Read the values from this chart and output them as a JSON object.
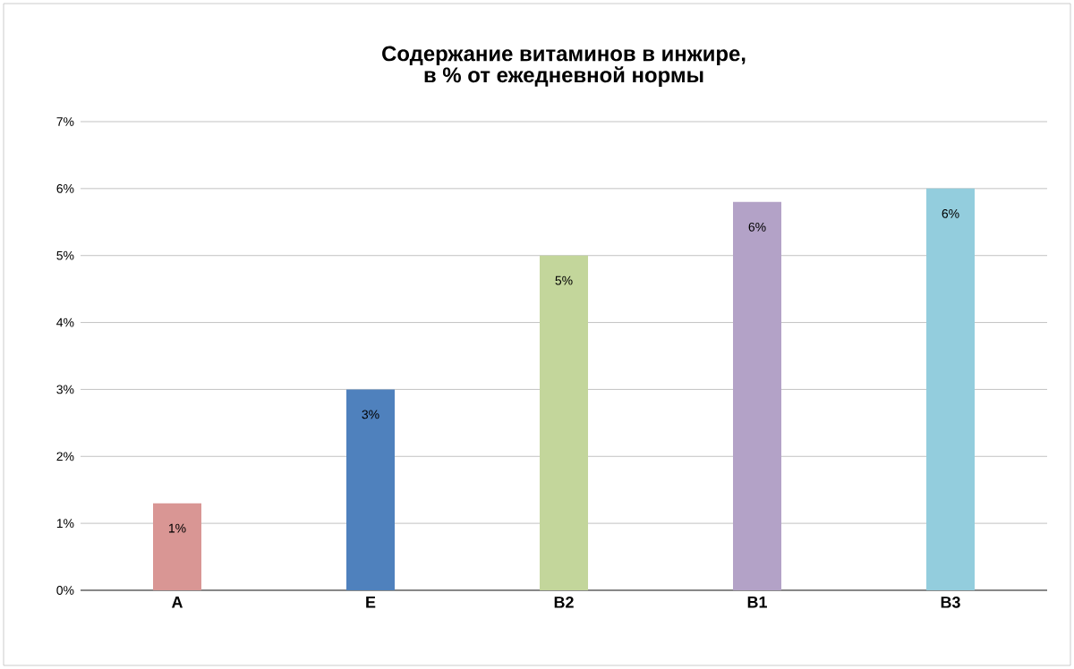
{
  "chart_data": {
    "type": "bar",
    "title": "Содержание витаминов в инжире, в % от ежедневной нормы",
    "categories": [
      "A",
      "E",
      "B2",
      "B1",
      "B3"
    ],
    "values": [
      1.3,
      3.0,
      5.0,
      5.8,
      6.0
    ],
    "colors": [
      "#d99694",
      "#4f81bd",
      "#c3d69b",
      "#b3a2c7",
      "#93cddd"
    ],
    "value_labels": [
      "1%",
      "3%",
      "5%",
      "6%",
      "6%"
    ],
    "ylim": [
      0,
      7
    ],
    "yticks": [
      {
        "value": 0,
        "label": "0%"
      },
      {
        "value": 1,
        "label": "1%"
      },
      {
        "value": 2,
        "label": "2%"
      },
      {
        "value": 3,
        "label": "3%"
      },
      {
        "value": 4,
        "label": "4%"
      },
      {
        "value": 5,
        "label": "5%"
      },
      {
        "value": 6,
        "label": "6%"
      },
      {
        "value": 7,
        "label": "7%"
      }
    ],
    "grid": "y"
  }
}
